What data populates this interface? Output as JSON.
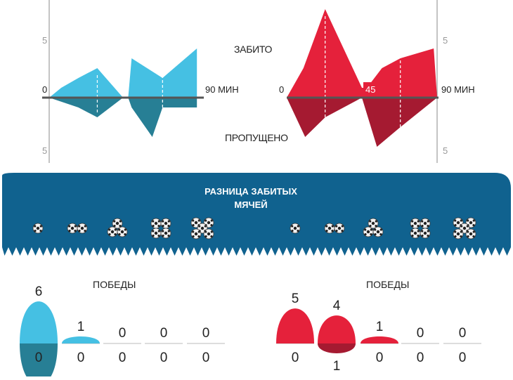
{
  "colors": {
    "team_a": "#45c0e3",
    "team_a_dark": "#277f95",
    "team_b": "#e5213b",
    "team_b_dark": "#a51a31",
    "band": "#10628f",
    "axis": "#555555"
  },
  "labels": {
    "scored": "ЗАБИТО",
    "conceded": "ПРОПУЩЕНО",
    "minutes_end": "90 МИН",
    "zero": "0",
    "half": "45",
    "scale_five": "5",
    "goal_diff_title_line1": "РАЗНИЦА ЗАБИТЫХ",
    "goal_diff_title_line2": "МЯЧЕЙ",
    "wins": "ПОБЕДЫ"
  },
  "chart_data": [
    {
      "type": "area",
      "team": "team_a",
      "x_unit": "минуты",
      "xlim": [
        0,
        90
      ],
      "ylim": [
        -5,
        5
      ],
      "halves": [
        {
          "scored": [
            {
              "x": 0,
              "y": 0
            },
            {
              "x": 7,
              "y": 1
            },
            {
              "x": 17,
              "y": 2
            },
            {
              "x": 28,
              "y": 3
            },
            {
              "x": 43,
              "y": 0
            }
          ],
          "conceded": [
            {
              "x": 0,
              "y": 0
            },
            {
              "x": 17,
              "y": 1
            },
            {
              "x": 28,
              "y": 2
            },
            {
              "x": 43,
              "y": 0
            }
          ],
          "marker_x": 28
        },
        {
          "scored": [
            {
              "x": 46,
              "y": 0
            },
            {
              "x": 48,
              "y": 4
            },
            {
              "x": 66,
              "y": 2
            },
            {
              "x": 86,
              "y": 5
            },
            {
              "x": 86,
              "y": 0
            }
          ],
          "conceded": [
            {
              "x": 46,
              "y": 0
            },
            {
              "x": 48,
              "y": 1
            },
            {
              "x": 60,
              "y": 4
            },
            {
              "x": 66,
              "y": 1
            },
            {
              "x": 86,
              "y": 1
            },
            {
              "x": 86,
              "y": 0
            }
          ],
          "marker_x": 66
        }
      ]
    },
    {
      "type": "area",
      "team": "team_b",
      "x_unit": "минуты",
      "xlim": [
        0,
        90
      ],
      "ylim": [
        -5,
        5
      ],
      "halves": [
        {
          "scored": [
            {
              "x": 0,
              "y": 0
            },
            {
              "x": 10,
              "y": 3
            },
            {
              "x": 23,
              "y": 9
            },
            {
              "x": 45,
              "y": 1
            },
            {
              "x": 45,
              "y": 0
            }
          ],
          "conceded": [
            {
              "x": 0,
              "y": 0
            },
            {
              "x": 11,
              "y": 4
            },
            {
              "x": 23,
              "y": 2
            },
            {
              "x": 45,
              "y": 0
            }
          ],
          "marker_x": 23
        },
        {
          "scored": [
            {
              "x": 45,
              "y": 0
            },
            {
              "x": 45,
              "y": 1
            },
            {
              "x": 48,
              "y": 1
            },
            {
              "x": 57,
              "y": 3
            },
            {
              "x": 68,
              "y": 4
            },
            {
              "x": 88,
              "y": 5
            },
            {
              "x": 90,
              "y": 0
            }
          ],
          "conceded": [
            {
              "x": 45,
              "y": 0
            },
            {
              "x": 54,
              "y": 5
            },
            {
              "x": 68,
              "y": 3
            },
            {
              "x": 90,
              "y": 0
            }
          ],
          "marker_x": 68
        }
      ]
    },
    {
      "type": "bar",
      "team": "team_a",
      "title": "ПОБЕДЫ",
      "categories": [
        "1",
        "2",
        "3",
        "4",
        "5"
      ],
      "wins": [
        6,
        1,
        0,
        0,
        0
      ],
      "losses": [
        0,
        0,
        0,
        0,
        0
      ]
    },
    {
      "type": "bar",
      "team": "team_b",
      "title": "ПОБЕДЫ",
      "categories": [
        "1",
        "2",
        "3",
        "4",
        "5"
      ],
      "wins": [
        5,
        4,
        1,
        0,
        0
      ],
      "losses": [
        0,
        1,
        0,
        0,
        0
      ]
    }
  ],
  "goal_diff_balls": [
    1,
    2,
    3,
    4,
    5
  ]
}
